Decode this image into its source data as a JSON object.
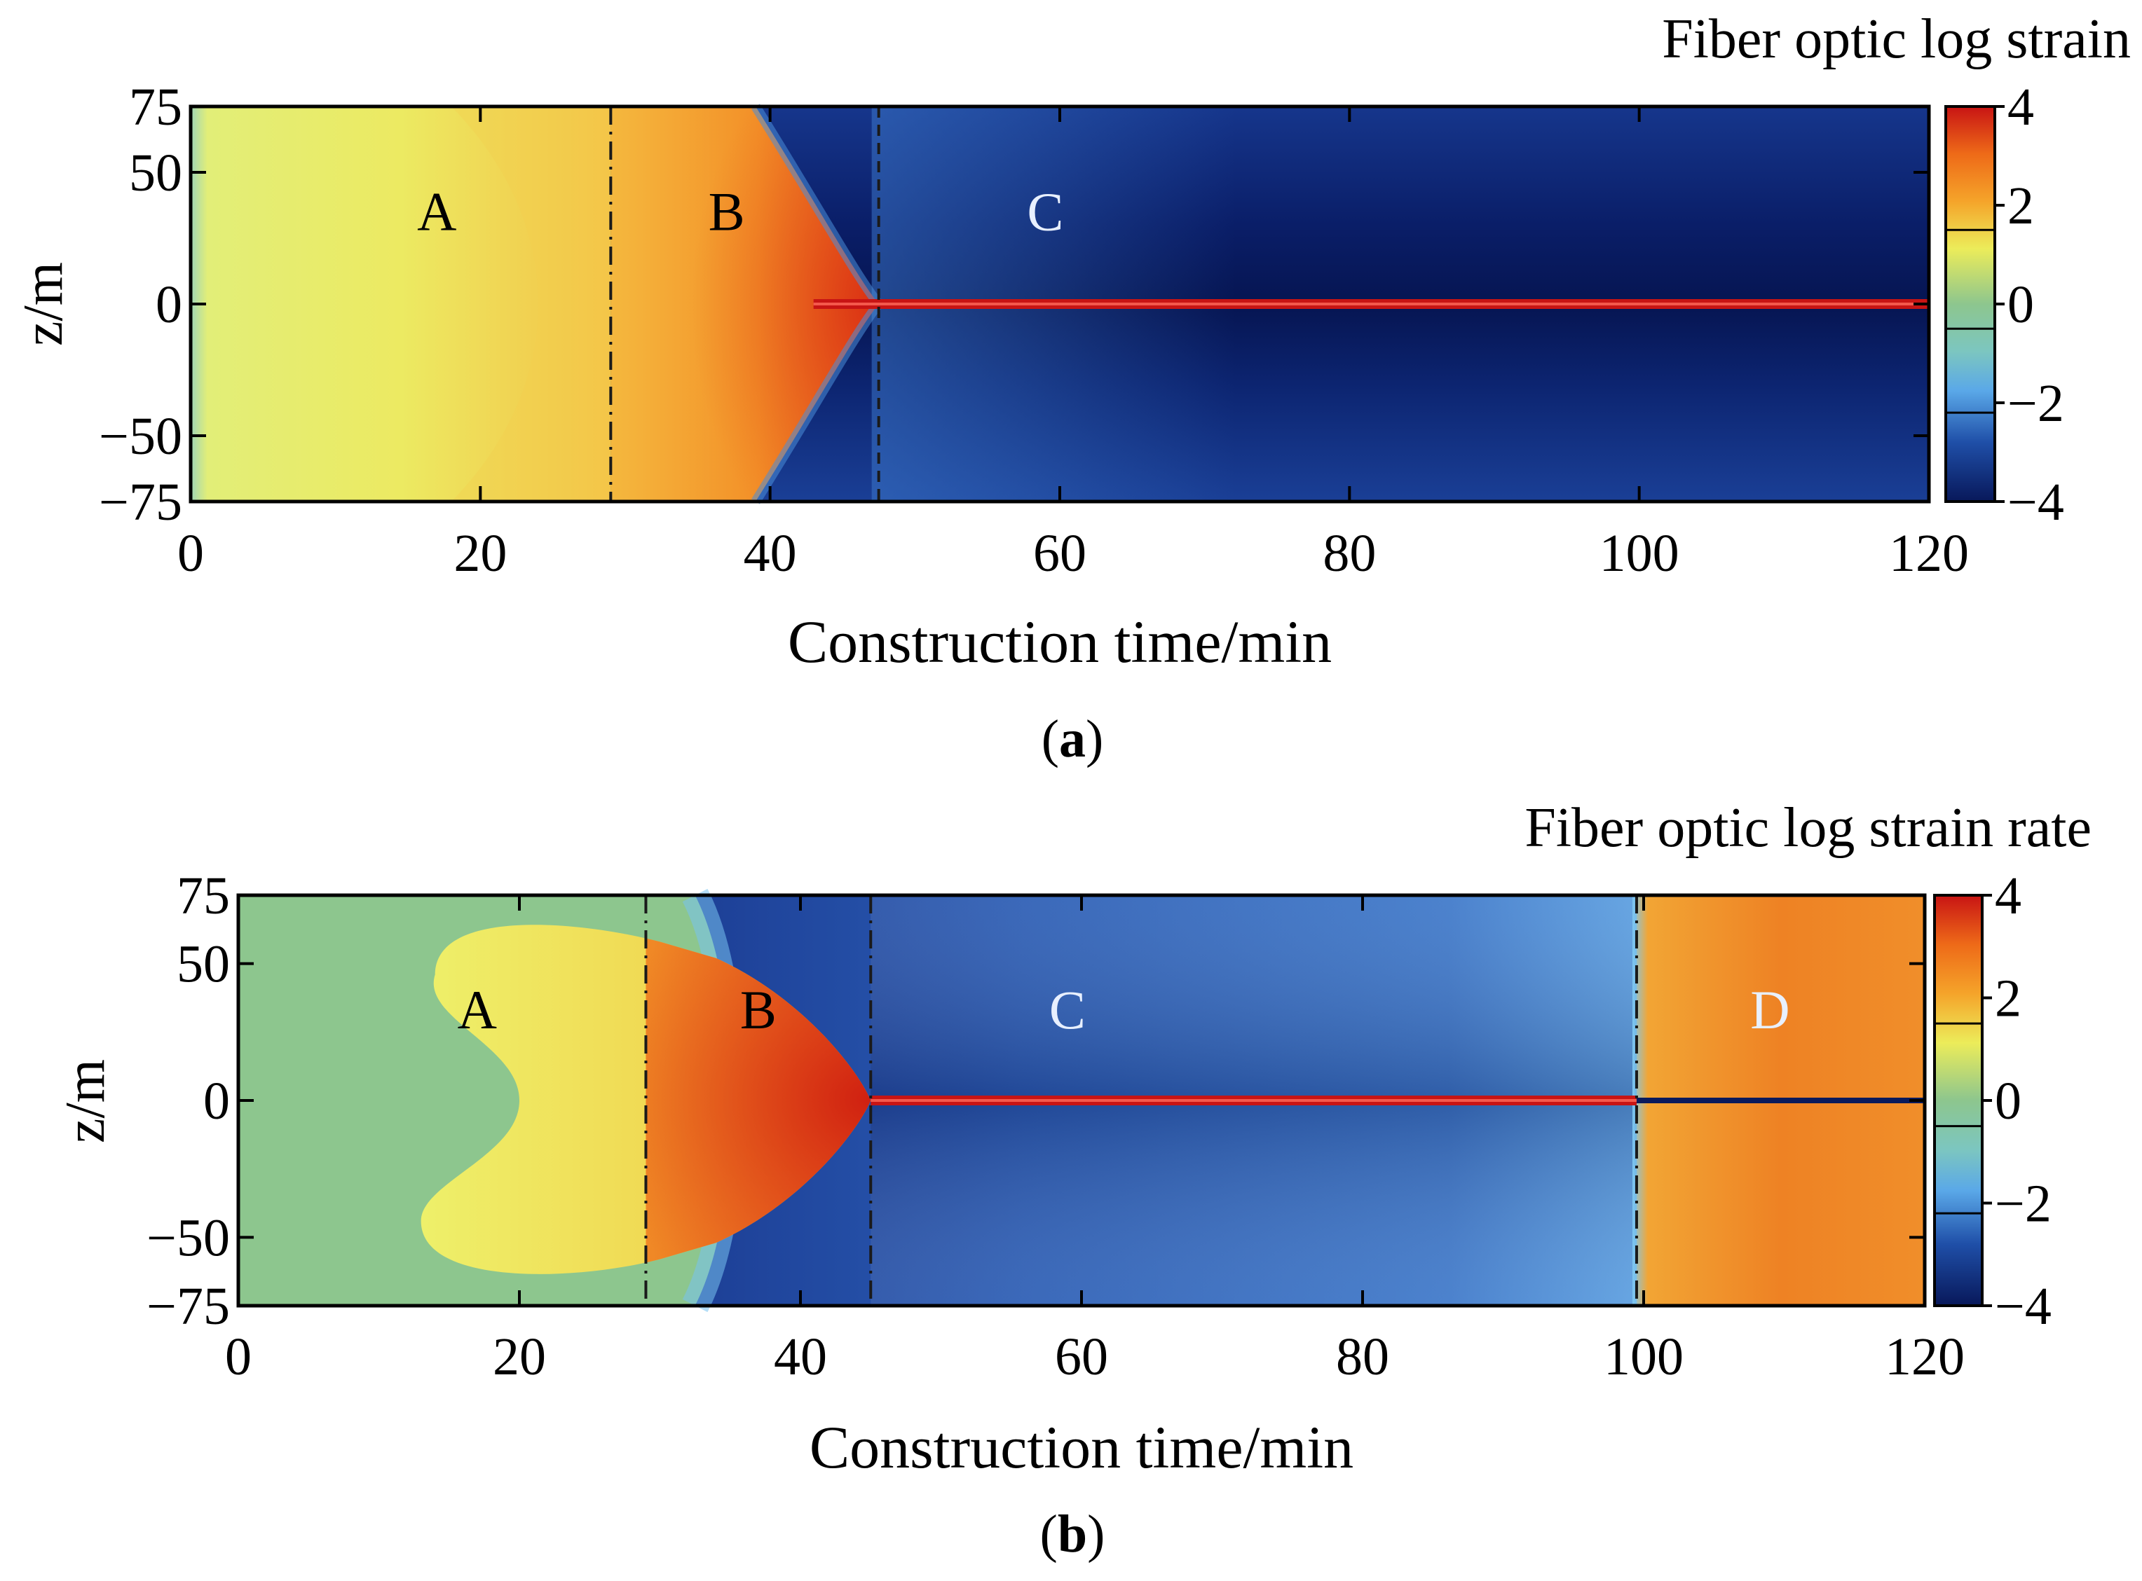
{
  "colors": {
    "deep_blue": "#08185a",
    "blue": "#1f4fa8",
    "light_blue": "#5aa8e8",
    "teal": "#7cc6b0",
    "green": "#8dc68e",
    "yellow": "#ecec5a",
    "orange": "#f5a42a",
    "dark_orange": "#ee6a18",
    "red": "#c81414"
  },
  "chart_data": [
    {
      "type": "heatmap",
      "id": "a",
      "panel_label": "(a)",
      "colorbar_title": "Fiber optic log strain",
      "xlabel": "Construction time/min",
      "ylabel": "z/m",
      "xlim": [
        0,
        120
      ],
      "ylim": [
        -75,
        75
      ],
      "xticks": [
        0,
        20,
        40,
        60,
        80,
        100,
        120
      ],
      "yticks": [
        75,
        50,
        0,
        -50,
        -75
      ],
      "colorbar_ticks": [
        4,
        2,
        0,
        -2,
        -4
      ],
      "colorbar_range": [
        -4,
        4
      ],
      "boundaries": [
        {
          "x": 29,
          "style": "dash-dot"
        },
        {
          "x": 47.5,
          "style": "dashed"
        }
      ],
      "zone_labels": [
        {
          "text": "A",
          "x": 17,
          "z": 36
        },
        {
          "text": "B",
          "x": 37,
          "z": 36
        },
        {
          "text": "C",
          "x": 59,
          "z": 36
        }
      ],
      "zones": [
        {
          "name": "A",
          "x_range": [
            0,
            29
          ],
          "value": 2.3
        },
        {
          "name": "B",
          "x_range": [
            29,
            47.5
          ],
          "value": 3.1
        },
        {
          "name": "C",
          "x_range": [
            47.5,
            120
          ],
          "value": -3.7
        }
      ],
      "center_line": {
        "z": 0,
        "x_range": [
          43,
          120
        ],
        "value": 4
      }
    },
    {
      "type": "heatmap",
      "id": "b",
      "panel_label": "(b)",
      "colorbar_title": "Fiber optic log strain rate",
      "xlabel": "Construction time/min",
      "ylabel": "z/m",
      "xlim": [
        0,
        120
      ],
      "ylim": [
        -75,
        75
      ],
      "xticks": [
        0,
        20,
        40,
        60,
        80,
        100,
        120
      ],
      "yticks": [
        75,
        50,
        0,
        -50,
        -75
      ],
      "colorbar_ticks": [
        4,
        2,
        0,
        -2,
        -4
      ],
      "colorbar_range": [
        -4,
        4
      ],
      "boundaries": [
        {
          "x": 29,
          "style": "dash-dot"
        },
        {
          "x": 45,
          "style": "dash-dot"
        },
        {
          "x": 99.5,
          "style": "dash-dot"
        }
      ],
      "zone_labels": [
        {
          "text": "A",
          "x": 17,
          "z": 34
        },
        {
          "text": "B",
          "x": 37,
          "z": 34
        },
        {
          "text": "C",
          "x": 59,
          "z": 34
        },
        {
          "text": "D",
          "x": 109,
          "z": 34
        }
      ],
      "zones": [
        {
          "name": "background",
          "x_range": [
            0,
            99.5
          ],
          "value": 0
        },
        {
          "name": "A",
          "x_range": [
            13,
            29
          ],
          "value": 1.2
        },
        {
          "name": "B",
          "x_range": [
            29,
            45
          ],
          "value": 2.6
        },
        {
          "name": "C",
          "x_range": [
            45,
            99.5
          ],
          "value": -2.8
        },
        {
          "name": "D",
          "x_range": [
            99.5,
            120
          ],
          "value": 2.8
        }
      ],
      "center_line": {
        "z": 0,
        "x_range": [
          45,
          99.5
        ],
        "value": 4
      }
    }
  ]
}
